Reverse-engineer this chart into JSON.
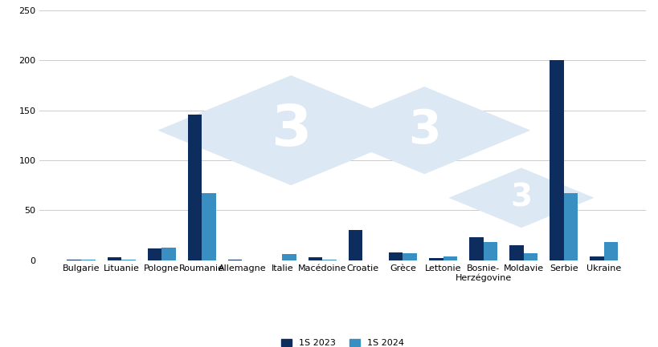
{
  "categories": [
    "Bulgarie",
    "Lituanie",
    "Pologne",
    "Roumanie",
    "Allemagne",
    "Italie",
    "Macédoine",
    "Croatie",
    "Grèce",
    "Lettonie",
    "Bosnie-\nHerzégovine",
    "Moldavie",
    "Serbie",
    "Ukraine"
  ],
  "values_2023": [
    1,
    3,
    12,
    146,
    1,
    0,
    3,
    30,
    8,
    2,
    23,
    15,
    200,
    4
  ],
  "values_2024": [
    1,
    1,
    13,
    67,
    0,
    6,
    1,
    0,
    7,
    4,
    18,
    7,
    67,
    18
  ],
  "color_2023": "#0d2d5e",
  "color_2024": "#3a8fc2",
  "ylim": [
    0,
    250
  ],
  "yticks": [
    0,
    50,
    100,
    150,
    200,
    250
  ],
  "legend_2023": "1S 2023",
  "legend_2024": "1S 2024",
  "background_color": "#ffffff",
  "grid_color": "#cccccc",
  "bar_width": 0.35,
  "watermark_diamond_color": "#dce8f3",
  "watermark_text_color": "#ffffff",
  "tick_fontsize": 8.0
}
